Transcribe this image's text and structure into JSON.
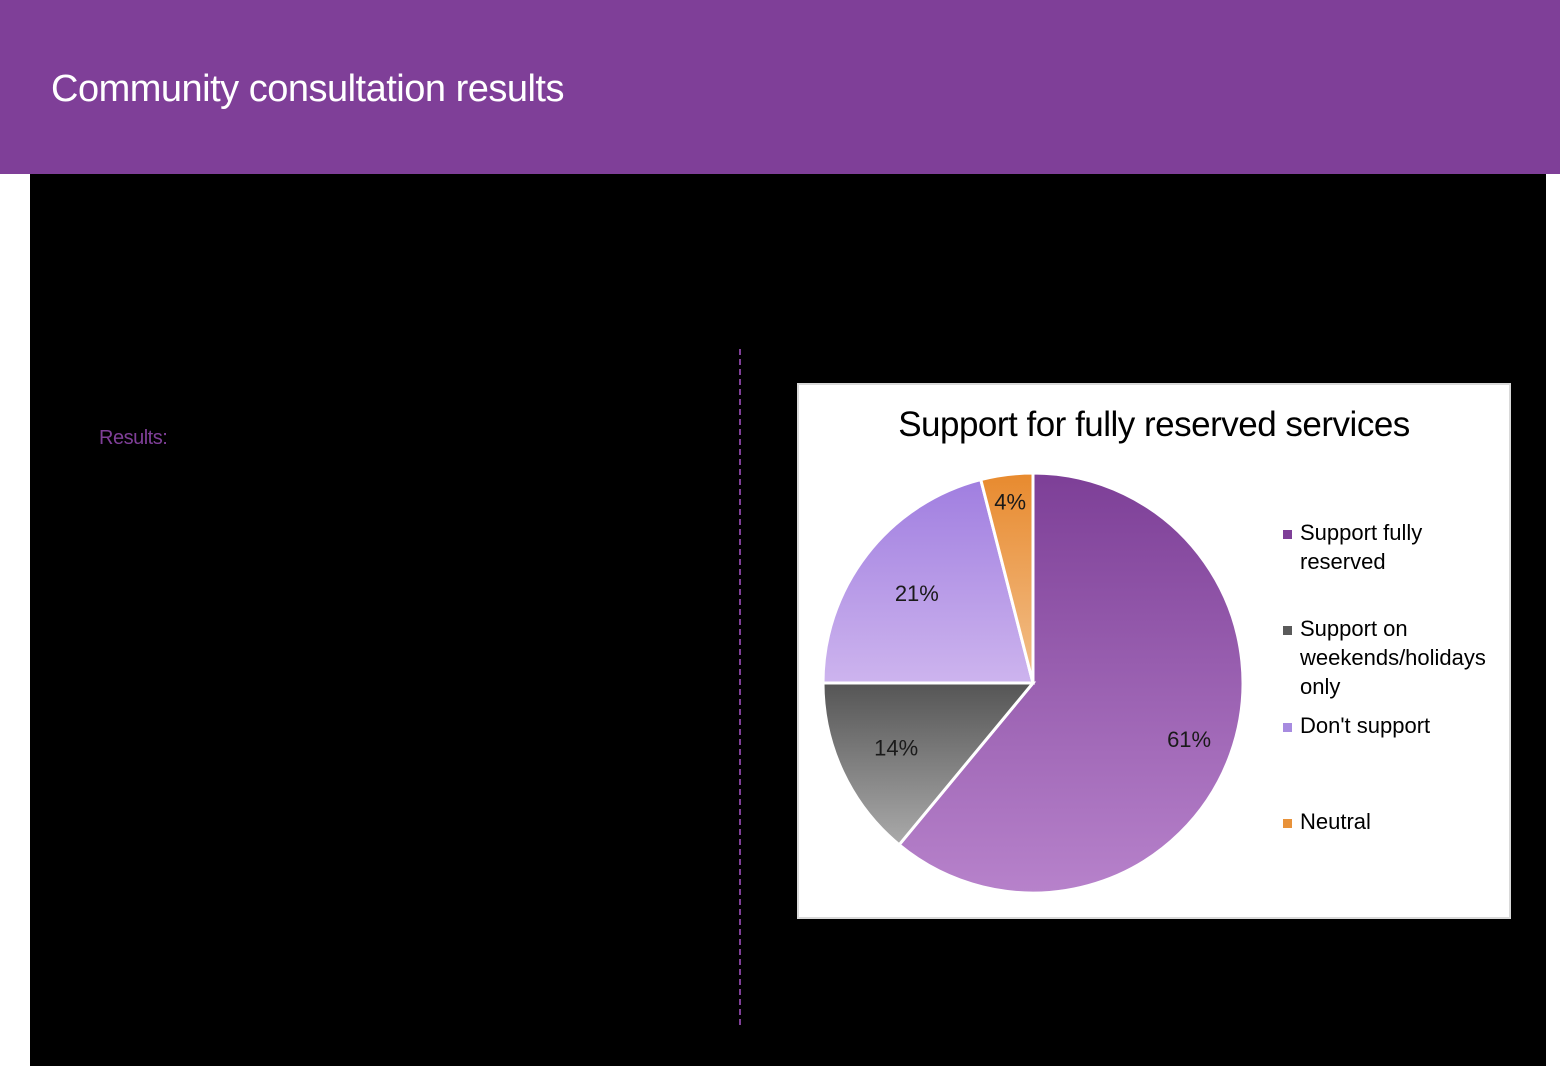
{
  "header": {
    "title": "Community consultation results",
    "accent": "#7f3f98"
  },
  "content": {
    "results_label": "Results:"
  },
  "chart_data": {
    "type": "pie",
    "title": "Support for fully reserved services",
    "categories": [
      "Support fully reserved",
      "Support on weekends/holidays only",
      "Don't support",
      "Neutral"
    ],
    "values": [
      61,
      14,
      21,
      4
    ],
    "labels": [
      "61%",
      "14%",
      "21%",
      "4%"
    ],
    "colors": [
      "#9b59b6",
      "#808080",
      "#b39ddb",
      "#f0a050"
    ],
    "legend_position": "right"
  },
  "legend": {
    "items": [
      {
        "label": "Support fully reserved",
        "color": "#7f3f98"
      },
      {
        "label": "Support on weekends/holidays only",
        "color": "#5a5a5a"
      },
      {
        "label": "Don't support",
        "color": "#a78be0"
      },
      {
        "label": "Neutral",
        "color": "#e8923a"
      }
    ]
  }
}
